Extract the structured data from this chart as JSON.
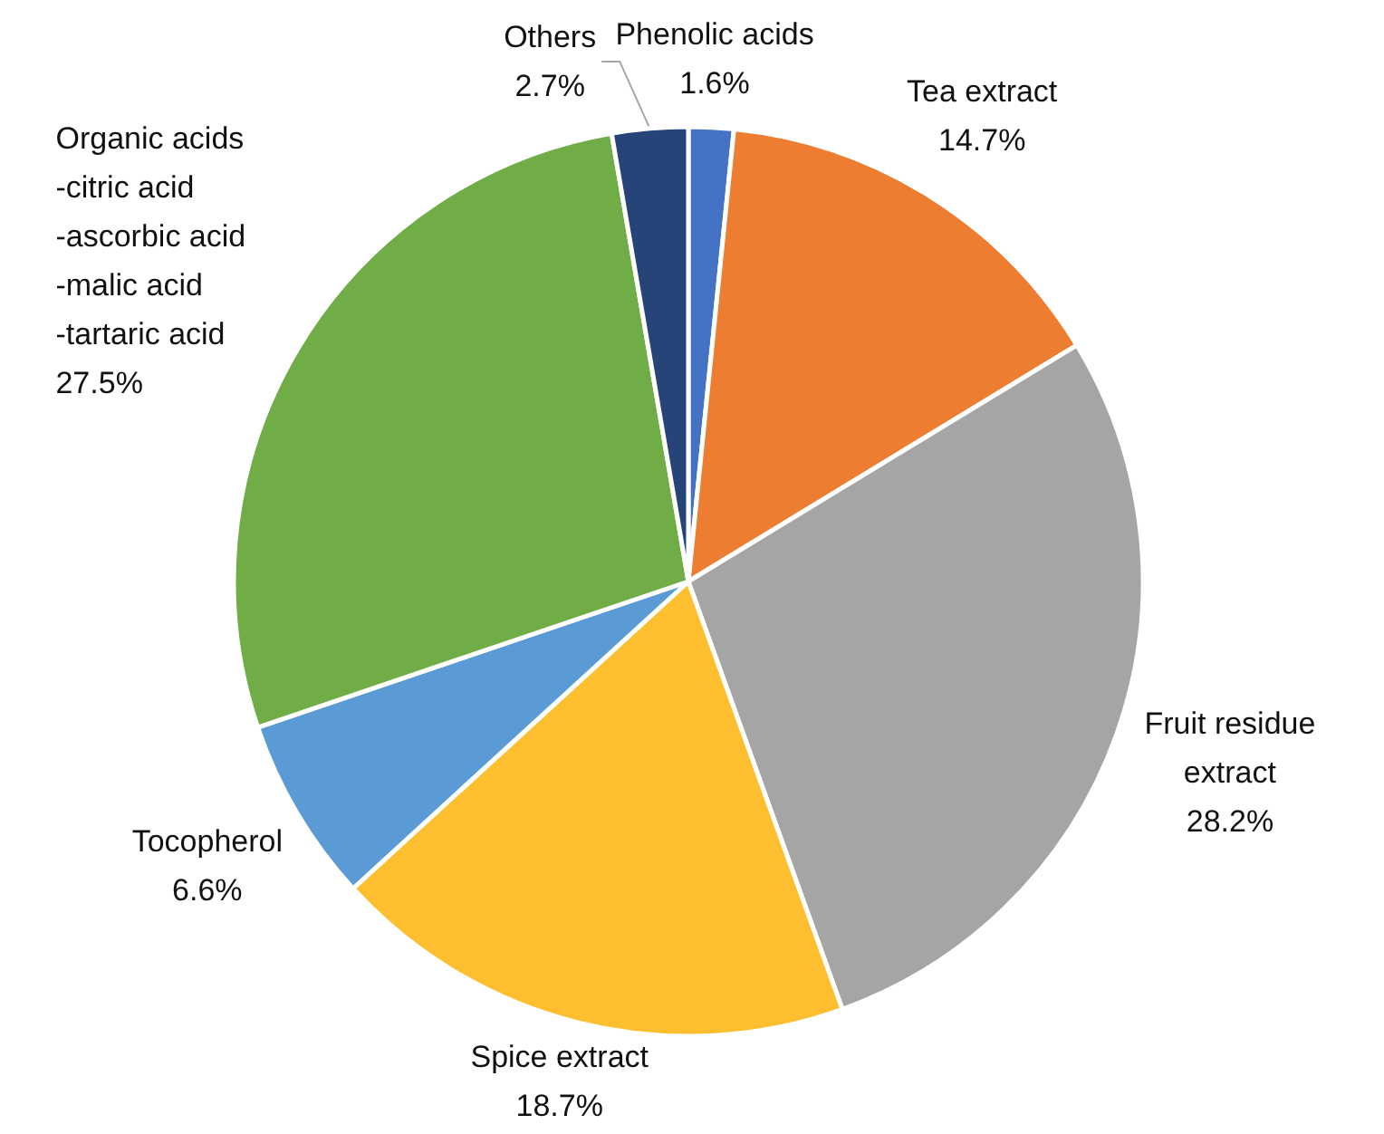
{
  "chart_data": {
    "type": "pie",
    "categories": [
      "Phenolic acids",
      "Tea extract",
      "Fruit residue extract",
      "Spice extract",
      "Tocopherol",
      "Organic acids\n-citric acid\n-ascorbic acid\n-malic acid\n-tartaric acid",
      "Others"
    ],
    "values": [
      1.6,
      14.7,
      28.2,
      18.7,
      6.6,
      27.5,
      2.7
    ],
    "colors": [
      "#4472c4",
      "#ed7d31",
      "#a5a5a5",
      "#fdbe2f",
      "#5b9bd5",
      "#70ad47",
      "#264478"
    ],
    "value_labels": [
      "1.6%",
      "14.7%",
      "28.2%",
      "18.7%",
      "6.6%",
      "27.5%",
      "2.7%"
    ]
  }
}
